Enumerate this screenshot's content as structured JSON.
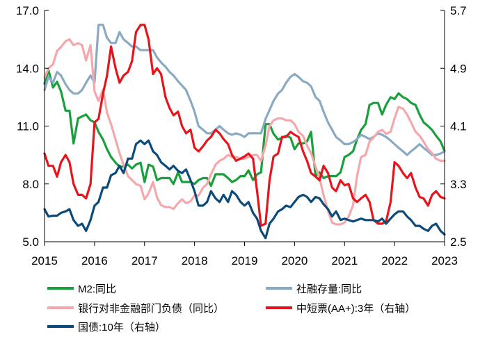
{
  "chart_data": {
    "type": "line",
    "title": "",
    "xlabel": "",
    "ylabel_left": "",
    "ylabel_right": "",
    "x_ticks": [
      "2015",
      "2016",
      "2017",
      "2018",
      "2019",
      "2020",
      "2021",
      "2022",
      "2023"
    ],
    "x_range": [
      2015.0,
      2023.0
    ],
    "ylim_left": [
      5.0,
      17.0
    ],
    "yticks_left": [
      "5.0",
      "8.0",
      "11.0",
      "14.0",
      "17.0"
    ],
    "ylim_right": [
      2.5,
      5.7
    ],
    "yticks_right": [
      "2.5",
      "3.3",
      "4.1",
      "4.9",
      "5.7"
    ],
    "grid": false,
    "legend_position": "bottom",
    "series": [
      {
        "name": "M2:同比",
        "axis": "left",
        "color": "#1a9f3c",
        "x": [
          2015.0,
          2015.08,
          2015.17,
          2015.25,
          2015.33,
          2015.42,
          2015.5,
          2015.58,
          2015.67,
          2015.75,
          2015.83,
          2015.92,
          2016.0,
          2016.08,
          2016.17,
          2016.25,
          2016.33,
          2016.42,
          2016.5,
          2016.58,
          2016.67,
          2016.75,
          2016.83,
          2016.92,
          2017.0,
          2017.08,
          2017.17,
          2017.25,
          2017.33,
          2017.42,
          2017.5,
          2017.58,
          2017.67,
          2017.75,
          2017.83,
          2017.92,
          2018.0,
          2018.08,
          2018.17,
          2018.25,
          2018.33,
          2018.42,
          2018.5,
          2018.58,
          2018.67,
          2018.75,
          2018.83,
          2018.92,
          2019.0,
          2019.08,
          2019.17,
          2019.25,
          2019.33,
          2019.42,
          2019.5,
          2019.58,
          2019.67,
          2019.75,
          2019.83,
          2019.92,
          2020.0,
          2020.08,
          2020.17,
          2020.25,
          2020.33,
          2020.42,
          2020.5,
          2020.58,
          2020.67,
          2020.75,
          2020.83,
          2020.92,
          2021.0,
          2021.08,
          2021.17,
          2021.25,
          2021.33,
          2021.42,
          2021.5,
          2021.58,
          2021.67,
          2021.75,
          2021.83,
          2021.92,
          2022.0,
          2022.08,
          2022.17,
          2022.25,
          2022.33,
          2022.42,
          2022.5,
          2022.58,
          2022.67,
          2022.75,
          2022.83,
          2022.92,
          2023.0
        ],
        "values": [
          13.2,
          13.9,
          13.0,
          13.3,
          12.8,
          11.8,
          11.8,
          10.1,
          11.4,
          11.5,
          11.6,
          11.3,
          11.2,
          10.7,
          10.3,
          9.8,
          9.4,
          9.1,
          8.9,
          8.9,
          9.0,
          8.8,
          9.0,
          9.1,
          8.1,
          9.0,
          8.9,
          8.2,
          8.3,
          8.3,
          8.3,
          8.0,
          8.6,
          8.1,
          8.1,
          8.1,
          8.0,
          8.2,
          8.3,
          8.3,
          7.9,
          8.5,
          8.5,
          8.5,
          8.3,
          8.1,
          8.2,
          8.4,
          8.4,
          8.7,
          8.2,
          8.5,
          8.6,
          11.1,
          11.1,
          10.6,
          10.3,
          10.4,
          10.5,
          10.4,
          9.8,
          10.1,
          10.1,
          10.2,
          10.7,
          8.4,
          8.6,
          8.3,
          8.4,
          8.4,
          8.4,
          8.6,
          9.4,
          9.5,
          9.7,
          10.3,
          10.8,
          11.1,
          12.1,
          12.2,
          12.2,
          11.6,
          12.1,
          12.5,
          12.4,
          12.7,
          12.5,
          12.4,
          12.2,
          12.1,
          11.6,
          11.2,
          11.0,
          10.8,
          10.5,
          10.2,
          9.7
        ]
      },
      {
        "name": "社融存量:同比",
        "axis": "right",
        "color": "#8aaac4",
        "x": [
          2015.0,
          2015.08,
          2015.17,
          2015.25,
          2015.33,
          2015.42,
          2015.5,
          2015.58,
          2015.67,
          2015.75,
          2015.83,
          2015.92,
          2016.0,
          2016.08,
          2016.17,
          2016.25,
          2016.33,
          2016.42,
          2016.5,
          2016.58,
          2016.67,
          2016.75,
          2016.83,
          2016.92,
          2017.0,
          2017.08,
          2017.17,
          2017.25,
          2017.33,
          2017.42,
          2017.5,
          2017.58,
          2017.67,
          2017.75,
          2017.83,
          2017.92,
          2018.0,
          2018.08,
          2018.17,
          2018.25,
          2018.33,
          2018.42,
          2018.5,
          2018.58,
          2018.67,
          2018.75,
          2018.83,
          2018.92,
          2019.0,
          2019.08,
          2019.17,
          2019.25,
          2019.33,
          2019.42,
          2019.5,
          2019.58,
          2019.67,
          2019.75,
          2019.83,
          2019.92,
          2020.0,
          2020.08,
          2020.17,
          2020.25,
          2020.33,
          2020.42,
          2020.5,
          2020.58,
          2020.67,
          2020.75,
          2020.83,
          2020.92,
          2021.0,
          2021.08,
          2021.17,
          2021.25,
          2021.33,
          2021.42,
          2021.5,
          2021.58,
          2021.67,
          2021.75,
          2021.83,
          2021.92,
          2022.0,
          2022.08,
          2022.17,
          2022.25,
          2022.33,
          2022.42,
          2022.5,
          2022.58,
          2022.67,
          2022.75,
          2022.83,
          2022.92,
          2023.0
        ],
        "values": [
          4.6,
          4.78,
          4.7,
          4.85,
          4.8,
          4.68,
          4.6,
          4.55,
          4.55,
          4.6,
          4.7,
          4.8,
          4.7,
          5.5,
          5.5,
          5.32,
          5.25,
          5.25,
          5.4,
          5.3,
          5.25,
          5.2,
          5.2,
          5.15,
          5.15,
          5.15,
          5.15,
          5.05,
          4.98,
          4.92,
          4.85,
          4.8,
          4.72,
          4.66,
          4.6,
          4.45,
          4.3,
          4.1,
          4.05,
          4.0,
          4.0,
          4.05,
          4.1,
          4.05,
          4.0,
          3.98,
          4.0,
          3.98,
          3.95,
          4.0,
          4.0,
          4.0,
          4.0,
          4.2,
          4.32,
          4.45,
          4.55,
          4.6,
          4.7,
          4.78,
          4.82,
          4.78,
          4.72,
          4.7,
          4.65,
          4.5,
          4.45,
          4.3,
          4.15,
          4.05,
          3.95,
          3.9,
          3.85,
          3.85,
          3.88,
          3.92,
          3.98,
          3.95,
          3.92,
          3.95,
          4.0,
          3.98,
          3.95,
          3.9,
          3.85,
          3.8,
          3.75,
          3.7,
          3.75,
          3.8,
          3.85,
          3.8,
          3.75,
          3.7,
          3.7,
          3.72,
          3.75
        ]
      },
      {
        "name": "银行对非金融部门负债（同比）",
        "axis": "left",
        "color": "#f5a8ac",
        "x": [
          2015.0,
          2015.08,
          2015.17,
          2015.25,
          2015.33,
          2015.42,
          2015.5,
          2015.58,
          2015.67,
          2015.75,
          2015.83,
          2015.92,
          2016.0,
          2016.08,
          2016.17,
          2016.25,
          2016.33,
          2016.42,
          2016.5,
          2016.58,
          2016.67,
          2016.75,
          2016.83,
          2016.92,
          2017.0,
          2017.08,
          2017.17,
          2017.25,
          2017.33,
          2017.42,
          2017.5,
          2017.58,
          2017.67,
          2017.75,
          2017.83,
          2017.92,
          2018.0,
          2018.08,
          2018.17,
          2018.25,
          2018.33,
          2018.42,
          2018.5,
          2018.58,
          2018.67,
          2018.75,
          2018.83,
          2018.92,
          2019.0,
          2019.08,
          2019.17,
          2019.25,
          2019.33,
          2019.42,
          2019.5,
          2019.58,
          2019.67,
          2019.75,
          2019.83,
          2019.92,
          2020.0,
          2020.08,
          2020.17,
          2020.25,
          2020.33,
          2020.42,
          2020.5,
          2020.58,
          2020.67,
          2020.75,
          2020.83,
          2020.92,
          2021.0,
          2021.08,
          2021.17,
          2021.25,
          2021.33,
          2021.42,
          2021.5,
          2021.58,
          2021.67,
          2021.75,
          2021.83,
          2021.92,
          2022.0,
          2022.08,
          2022.17,
          2022.25,
          2022.33,
          2022.42,
          2022.5,
          2022.58,
          2022.67,
          2022.75,
          2022.83,
          2022.92,
          2023.0
        ],
        "values": [
          13.5,
          14.0,
          14.2,
          14.9,
          15.1,
          15.4,
          15.5,
          15.2,
          15.3,
          15.2,
          14.4,
          15.2,
          12.8,
          12.3,
          12.9,
          11.7,
          11.1,
          10.3,
          9.6,
          9.0,
          8.4,
          8.2,
          8.0,
          7.9,
          7.2,
          7.5,
          8.1,
          7.3,
          6.9,
          6.8,
          6.8,
          6.7,
          7.0,
          7.2,
          7.0,
          7.1,
          7.4,
          7.4,
          7.8,
          8.0,
          8.5,
          9.0,
          9.2,
          9.3,
          9.5,
          9.4,
          9.4,
          9.3,
          9.3,
          9.4,
          9.5,
          9.5,
          9.2,
          10.0,
          11.0,
          11.3,
          11.4,
          11.4,
          11.3,
          11.3,
          11.1,
          10.7,
          10.5,
          10.0,
          9.6,
          8.9,
          8.3,
          7.4,
          6.6,
          6.0,
          5.9,
          5.9,
          6.0,
          6.3,
          6.9,
          8.4,
          9.4,
          9.5,
          10.2,
          10.4,
          10.7,
          10.8,
          10.6,
          10.7,
          11.4,
          12.0,
          11.9,
          11.6,
          11.2,
          10.7,
          10.5,
          10.2,
          9.8,
          9.6,
          9.3,
          9.2,
          9.2
        ]
      },
      {
        "name": "中短票(AA+):3年（右轴）",
        "axis": "right",
        "color": "#e8141c",
        "x": [
          2015.0,
          2015.08,
          2015.17,
          2015.25,
          2015.33,
          2015.42,
          2015.5,
          2015.58,
          2015.67,
          2015.75,
          2015.83,
          2015.92,
          2016.0,
          2016.08,
          2016.17,
          2016.25,
          2016.33,
          2016.42,
          2016.5,
          2016.58,
          2016.67,
          2016.75,
          2016.83,
          2016.92,
          2017.0,
          2017.08,
          2017.17,
          2017.25,
          2017.33,
          2017.42,
          2017.5,
          2017.58,
          2017.67,
          2017.75,
          2017.83,
          2017.92,
          2018.0,
          2018.08,
          2018.17,
          2018.25,
          2018.33,
          2018.42,
          2018.5,
          2018.58,
          2018.67,
          2018.75,
          2018.83,
          2018.92,
          2019.0,
          2019.08,
          2019.17,
          2019.25,
          2019.33,
          2019.42,
          2019.5,
          2019.58,
          2019.67,
          2019.75,
          2019.83,
          2019.92,
          2020.0,
          2020.08,
          2020.17,
          2020.25,
          2020.33,
          2020.42,
          2020.5,
          2020.58,
          2020.67,
          2020.75,
          2020.83,
          2020.92,
          2021.0,
          2021.08,
          2021.17,
          2021.25,
          2021.33,
          2021.42,
          2021.5,
          2021.58,
          2021.67,
          2021.75,
          2021.83,
          2021.92,
          2022.0,
          2022.08,
          2022.17,
          2022.25,
          2022.33,
          2022.42,
          2022.5,
          2022.58,
          2022.67,
          2022.75,
          2022.83,
          2022.92,
          2023.0
        ],
        "values": [
          3.72,
          3.55,
          3.55,
          3.4,
          3.6,
          3.7,
          3.6,
          3.3,
          3.15,
          3.15,
          3.1,
          3.3,
          4.15,
          4.2,
          4.55,
          4.8,
          5.2,
          4.9,
          4.7,
          4.8,
          4.85,
          5.0,
          5.4,
          5.5,
          5.5,
          5.3,
          4.82,
          4.9,
          4.82,
          4.5,
          4.35,
          4.25,
          4.3,
          4.1,
          4.0,
          4.05,
          3.8,
          3.75,
          3.82,
          3.9,
          3.95,
          4.05,
          4.0,
          3.92,
          3.85,
          3.7,
          3.62,
          3.65,
          3.68,
          3.72,
          3.65,
          3.2,
          2.72,
          2.75,
          3.35,
          3.68,
          3.72,
          3.95,
          3.95,
          4.02,
          3.98,
          3.95,
          3.75,
          3.62,
          3.45,
          3.4,
          3.35,
          3.55,
          3.45,
          3.25,
          3.2,
          3.35,
          3.28,
          3.3,
          3.1,
          3.05,
          3.1,
          3.15,
          3.05,
          2.8,
          2.75,
          2.75,
          2.78,
          3.05,
          3.6,
          3.55,
          3.45,
          3.38,
          3.45,
          3.25,
          3.12,
          3.1,
          3.0,
          3.15,
          3.2,
          3.12,
          3.1
        ]
      },
      {
        "name": "国债:10年（右轴）",
        "axis": "right",
        "color": "#0c4a7a",
        "x": [
          2015.0,
          2015.08,
          2015.17,
          2015.25,
          2015.33,
          2015.42,
          2015.5,
          2015.58,
          2015.67,
          2015.75,
          2015.83,
          2015.92,
          2016.0,
          2016.08,
          2016.17,
          2016.25,
          2016.33,
          2016.42,
          2016.5,
          2016.58,
          2016.67,
          2016.75,
          2016.83,
          2016.92,
          2017.0,
          2017.08,
          2017.17,
          2017.25,
          2017.33,
          2017.42,
          2017.5,
          2017.58,
          2017.67,
          2017.75,
          2017.83,
          2017.92,
          2018.0,
          2018.08,
          2018.17,
          2018.25,
          2018.33,
          2018.42,
          2018.5,
          2018.58,
          2018.67,
          2018.75,
          2018.83,
          2018.92,
          2019.0,
          2019.08,
          2019.17,
          2019.25,
          2019.33,
          2019.42,
          2019.5,
          2019.58,
          2019.67,
          2019.75,
          2019.83,
          2019.92,
          2020.0,
          2020.08,
          2020.17,
          2020.25,
          2020.33,
          2020.42,
          2020.5,
          2020.58,
          2020.67,
          2020.75,
          2020.83,
          2020.92,
          2021.0,
          2021.08,
          2021.17,
          2021.25,
          2021.33,
          2021.42,
          2021.5,
          2021.58,
          2021.67,
          2021.75,
          2021.83,
          2021.92,
          2022.0,
          2022.08,
          2022.17,
          2022.25,
          2022.33,
          2022.42,
          2022.5,
          2022.58,
          2022.67,
          2022.75,
          2022.83,
          2022.92,
          2023.0
        ],
        "values": [
          2.95,
          2.85,
          2.86,
          2.86,
          2.9,
          2.92,
          2.95,
          2.8,
          2.72,
          2.75,
          2.65,
          2.8,
          3.0,
          3.05,
          3.25,
          3.25,
          3.42,
          3.45,
          3.55,
          3.45,
          3.65,
          3.65,
          3.85,
          3.9,
          3.85,
          3.9,
          3.75,
          3.7,
          3.6,
          3.55,
          3.5,
          3.55,
          3.48,
          3.45,
          3.5,
          3.35,
          3.2,
          3.0,
          3.0,
          3.05,
          3.2,
          3.1,
          3.05,
          3.15,
          3.05,
          3.2,
          3.15,
          3.05,
          3.0,
          3.05,
          2.9,
          2.82,
          2.65,
          2.55,
          2.75,
          2.82,
          2.92,
          2.95,
          3.0,
          2.98,
          3.05,
          3.12,
          3.15,
          3.12,
          3.05,
          3.12,
          3.1,
          3.02,
          2.95,
          2.85,
          2.92,
          2.8,
          2.82,
          2.8,
          2.78,
          2.8,
          2.82,
          2.8,
          2.8,
          2.8,
          2.78,
          2.82,
          2.75,
          2.82,
          2.88,
          2.92,
          2.92,
          2.85,
          2.8,
          2.72,
          2.72,
          2.68,
          2.65,
          2.72,
          2.75,
          2.65,
          2.6
        ]
      }
    ]
  }
}
